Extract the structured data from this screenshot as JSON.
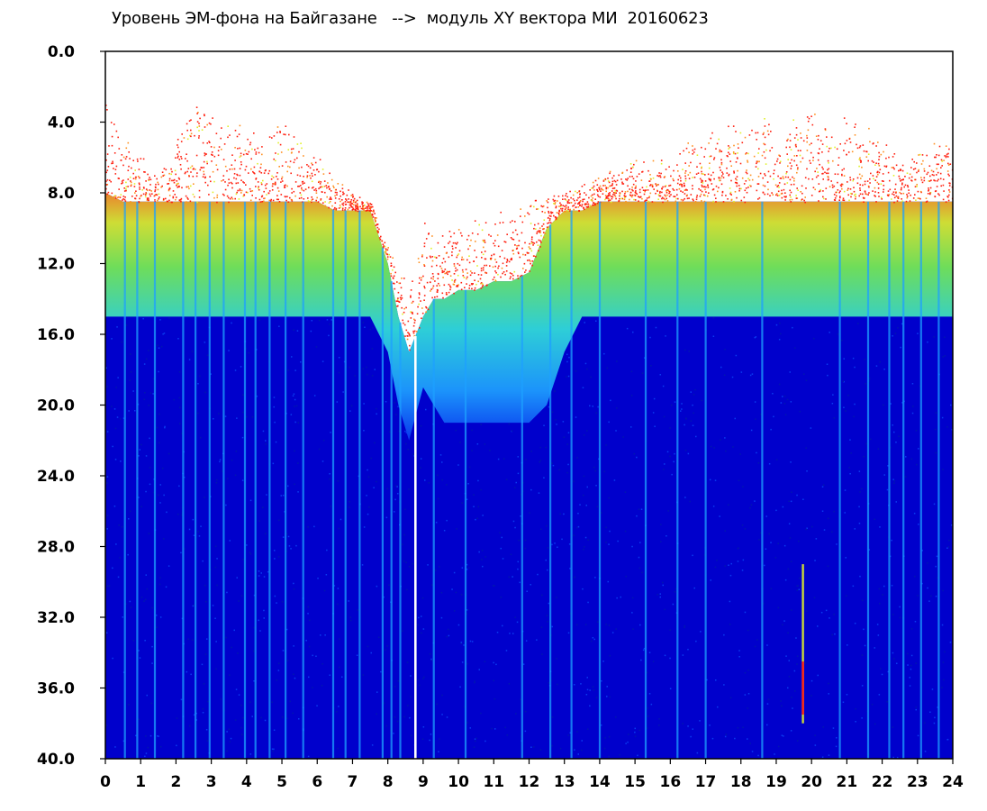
{
  "chart_data": {
    "type": "heatmap",
    "title": "Уровень ЭМ-фона на Байгазане   -->  модуль XY вектора МИ  20160623",
    "xlabel": "",
    "ylabel": "",
    "x_ticks": [
      "0",
      "1",
      "2",
      "3",
      "4",
      "5",
      "6",
      "7",
      "8",
      "9",
      "10",
      "11",
      "12",
      "13",
      "14",
      "15",
      "16",
      "17",
      "18",
      "19",
      "20",
      "21",
      "22",
      "23",
      "24"
    ],
    "y_ticks": [
      "0.0",
      "4.0",
      "8.0",
      "12.0",
      "16.0",
      "20.0",
      "24.0",
      "28.0",
      "32.0",
      "36.0",
      "40.0"
    ],
    "xlim": [
      0,
      24
    ],
    "ylim": [
      40,
      0
    ],
    "y_inverted": true,
    "grid": false,
    "colorscale": [
      "#0000cc",
      "#0a3cf0",
      "#1ea0ff",
      "#32e0d8",
      "#78f050",
      "#e0f028",
      "#ff9020",
      "#ff2010",
      "#ffffff"
    ],
    "profile": {
      "hours": [
        0,
        0.5,
        1,
        1.5,
        2,
        2.5,
        3,
        3.5,
        4,
        4.5,
        5,
        5.5,
        6,
        6.5,
        7,
        7.5,
        8,
        8.3,
        8.6,
        9,
        9.3,
        9.6,
        10,
        10.5,
        11,
        11.5,
        12,
        12.5,
        13,
        13.5,
        14,
        14.5,
        15,
        15.5,
        16,
        16.5,
        17,
        17.5,
        18,
        18.5,
        19,
        19.5,
        20,
        20.5,
        21,
        21.5,
        22,
        22.5,
        23,
        23.5,
        24
      ],
      "red_band_top": [
        2.5,
        5,
        5,
        7,
        5,
        2.5,
        3,
        4,
        4,
        5,
        3.5,
        5,
        5.5,
        7,
        8,
        8.5,
        11,
        12,
        12.5,
        9.5,
        10,
        10,
        10,
        9.5,
        9,
        9,
        8.5,
        8,
        8,
        7.5,
        7,
        6.5,
        6,
        6,
        6,
        5,
        4,
        4,
        3.5,
        3.5,
        4,
        3.5,
        3,
        4,
        3.5,
        4,
        5,
        6,
        5.5,
        5,
        5
      ],
      "signal_top": [
        8,
        8.5,
        8.5,
        8.5,
        8.5,
        8.5,
        8.5,
        8.5,
        8.5,
        8.5,
        8.5,
        8.5,
        8.5,
        9,
        9,
        9,
        12,
        15,
        17,
        15,
        14,
        14,
        13.5,
        13.5,
        13,
        13,
        12.5,
        10,
        9,
        9,
        8.5,
        8.5,
        8.5,
        8.5,
        8.5,
        8.5,
        8.5,
        8.5,
        8.5,
        8.5,
        8.5,
        8.5,
        8.5,
        8.5,
        8.5,
        8.5,
        8.5,
        8.5,
        8.5,
        8.5,
        8.5
      ],
      "signal_bottom": [
        15,
        15,
        15,
        15,
        15,
        15,
        15,
        15,
        15,
        15,
        15,
        15,
        15,
        15,
        15,
        15,
        17,
        20,
        22,
        19,
        20,
        21,
        21,
        21,
        21,
        21,
        21,
        20,
        17,
        15,
        15,
        15,
        15,
        15,
        15,
        15,
        15,
        15,
        15,
        15,
        15,
        15,
        15,
        15,
        15,
        15,
        15,
        15,
        15,
        15,
        15
      ]
    },
    "vertical_streaks": [
      0.55,
      0.9,
      1.4,
      2.2,
      2.55,
      2.95,
      3.35,
      3.95,
      4.25,
      4.65,
      5.1,
      5.6,
      6.45,
      6.8,
      7.2,
      7.85,
      8.1,
      8.35,
      9.3,
      10.2,
      11.8,
      12.6,
      13.2,
      14.0,
      15.3,
      16.2,
      17.0,
      18.6,
      20.8,
      21.6,
      22.2,
      22.6,
      23.1,
      23.6
    ],
    "gaps": [
      8.78
    ],
    "anomaly": {
      "hour": 19.75,
      "from": 29,
      "to": 38
    }
  }
}
